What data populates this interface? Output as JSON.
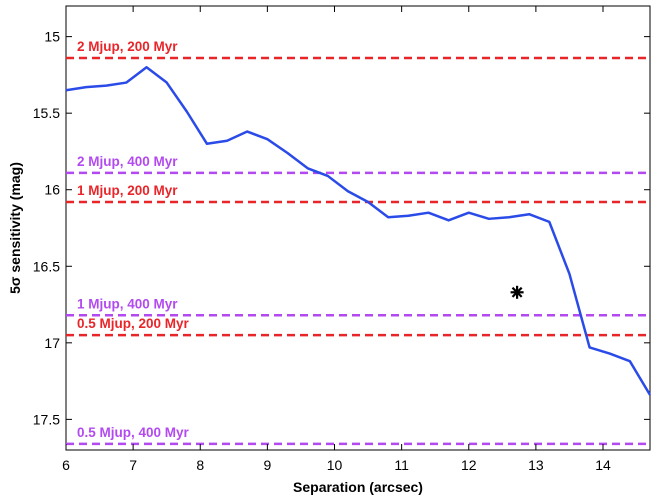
{
  "chart_data": {
    "type": "line",
    "title": "",
    "xlabel": "Separation (arcsec)",
    "ylabel": "5σ sensitivity (mag)",
    "xlim": [
      6,
      14.7
    ],
    "ylim": [
      14.8,
      17.7
    ],
    "y_inverted": true,
    "grid": false,
    "x_ticks": [
      6,
      7,
      8,
      9,
      10,
      11,
      12,
      13,
      14
    ],
    "y_ticks": [
      15,
      15.5,
      16,
      16.5,
      17,
      17.5
    ],
    "x_tick_labels": [
      "6",
      "7",
      "8",
      "9",
      "10",
      "11",
      "12",
      "13",
      "14"
    ],
    "y_tick_labels": [
      "15",
      "15.5",
      "16",
      "16.5",
      "17",
      "17.5"
    ],
    "series": [
      {
        "color": "#2a4be8",
        "x": [
          6.0,
          6.3,
          6.6,
          6.9,
          7.2,
          7.5,
          7.8,
          8.1,
          8.4,
          8.7,
          9.0,
          9.3,
          9.6,
          9.9,
          10.2,
          10.5,
          10.8,
          11.1,
          11.4,
          11.7,
          12.0,
          12.3,
          12.6,
          12.9,
          13.2,
          13.5,
          13.8,
          14.1,
          14.4,
          14.7
        ],
        "y": [
          15.35,
          15.33,
          15.32,
          15.3,
          15.2,
          15.3,
          15.49,
          15.7,
          15.68,
          15.62,
          15.67,
          15.76,
          15.86,
          15.91,
          16.01,
          16.08,
          16.18,
          16.17,
          16.15,
          16.2,
          16.15,
          16.19,
          16.18,
          16.16,
          16.21,
          16.55,
          17.03,
          17.07,
          17.12,
          17.34
        ]
      }
    ],
    "marker": {
      "x": 12.72,
      "y": 16.67,
      "symbol": "*",
      "color": "#000000"
    },
    "reference_lines": [
      {
        "label": "2 Mjup, 200 Myr",
        "y": 15.14,
        "color": "#e8262a"
      },
      {
        "label": "2 Mjup, 400 Myr",
        "y": 15.89,
        "color": "#b34af0"
      },
      {
        "label": "1 Mjup, 200 Myr",
        "y": 16.08,
        "color": "#e8262a"
      },
      {
        "label": "1 Mjup, 400 Myr",
        "y": 16.82,
        "color": "#b34af0"
      },
      {
        "label": "0.5 Mjup, 200 Myr",
        "y": 16.95,
        "color": "#e8262a"
      },
      {
        "label": "0.5 Mjup, 400 Myr",
        "y": 17.66,
        "color": "#b34af0"
      }
    ]
  }
}
